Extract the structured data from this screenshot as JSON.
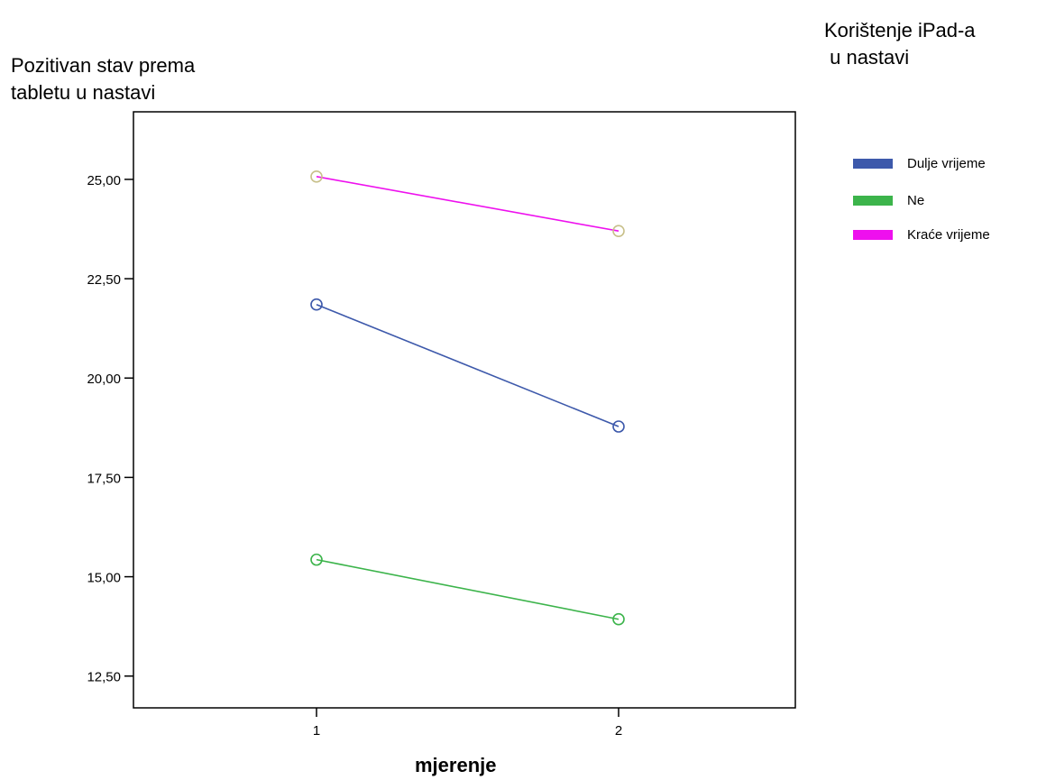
{
  "chart_data": {
    "type": "line",
    "x": [
      "1",
      "2"
    ],
    "xlabel": "mjerenje",
    "ylabel_lines": [
      "Pozitivan stav prema",
      "tabletu u nastavi"
    ],
    "yticks": [
      "12,50",
      "15,00",
      "17,50",
      "20,00",
      "22,50",
      "25,00"
    ],
    "ytick_values": [
      12.5,
      15.0,
      17.5,
      20.0,
      22.5,
      25.0
    ],
    "ylim": [
      11.7,
      26.7
    ],
    "legend": {
      "title_lines": [
        "Korištenje iPad-a",
        " u nastavi"
      ],
      "placement": "right"
    },
    "series": [
      {
        "name": "Dulje vrijeme",
        "values": [
          21.85,
          18.78
        ],
        "color": "#3d59ab",
        "marker_color": "#3d59ab"
      },
      {
        "name": "Ne",
        "values": [
          15.43,
          13.93
        ],
        "color": "#3cb44b",
        "marker_color": "#3cb44b"
      },
      {
        "name": "Kraće vrijeme",
        "values": [
          25.07,
          23.7
        ],
        "color": "#ee10ee",
        "marker_color": "#c8c08a"
      }
    ]
  }
}
